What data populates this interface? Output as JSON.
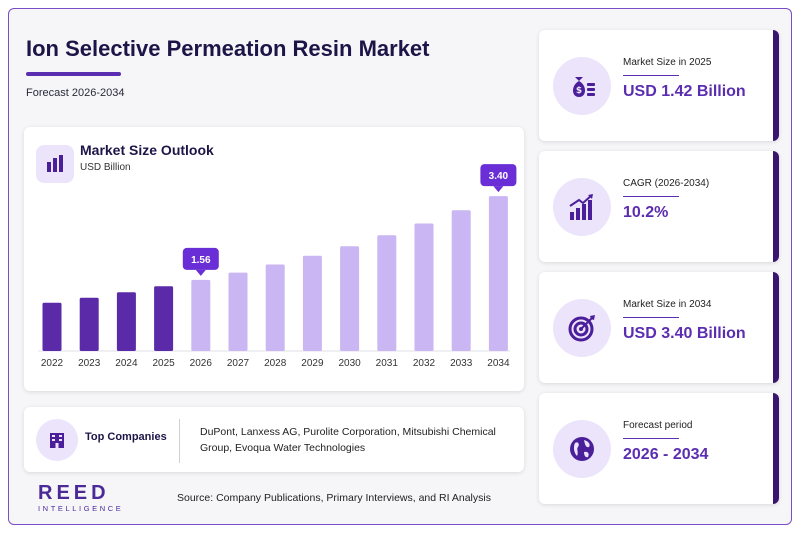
{
  "header": {
    "title": "Ion Selective Permeation Resin Market",
    "subtitle": "Forecast 2026-2034"
  },
  "chart_card": {
    "title": "Market Size Outlook",
    "unit": "USD Billion"
  },
  "chart_data": {
    "type": "bar",
    "title": "Market Size Outlook",
    "ylabel": "USD Billion",
    "categories": [
      "2022",
      "2023",
      "2024",
      "2025",
      "2026",
      "2027",
      "2028",
      "2029",
      "2030",
      "2031",
      "2032",
      "2033",
      "2034"
    ],
    "values": [
      1.06,
      1.17,
      1.29,
      1.42,
      1.56,
      1.72,
      1.9,
      2.09,
      2.3,
      2.54,
      2.8,
      3.09,
      3.4
    ],
    "ylim": [
      0,
      3.6
    ],
    "historical_color": "#5a2aa8",
    "forecast_color": "#c9b6f2",
    "callouts": [
      {
        "index": 4,
        "label": "1.56"
      },
      {
        "index": 12,
        "label": "3.40"
      }
    ],
    "callout_color": "#6a2ed6"
  },
  "companies": {
    "label": "Top Companies",
    "list": "DuPont, Lanxess AG, Purolite Corporation, Mitsubishi Chemical Group, Evoqua Water Technologies"
  },
  "logo": {
    "main": "REED",
    "sub": "INTELLIGENCE"
  },
  "source": "Source: Company Publications, Primary Interviews, and RI Analysis",
  "stats": [
    {
      "label": "Market Size in 2025",
      "value": "USD 1.42 Billion",
      "icon": "money-bag-icon"
    },
    {
      "label": "CAGR (2026-2034)",
      "value": "10.2%",
      "icon": "growth-chart-icon"
    },
    {
      "label": "Market Size in 2034",
      "value": "USD 3.40 Billion",
      "icon": "target-icon"
    },
    {
      "label": "Forecast period",
      "value": "2026 - 2034",
      "icon": "globe-icon"
    }
  ],
  "colors": {
    "accent": "#5b2db0",
    "dark_accent": "#3a1570",
    "icon_bg": "#ece4fb"
  }
}
